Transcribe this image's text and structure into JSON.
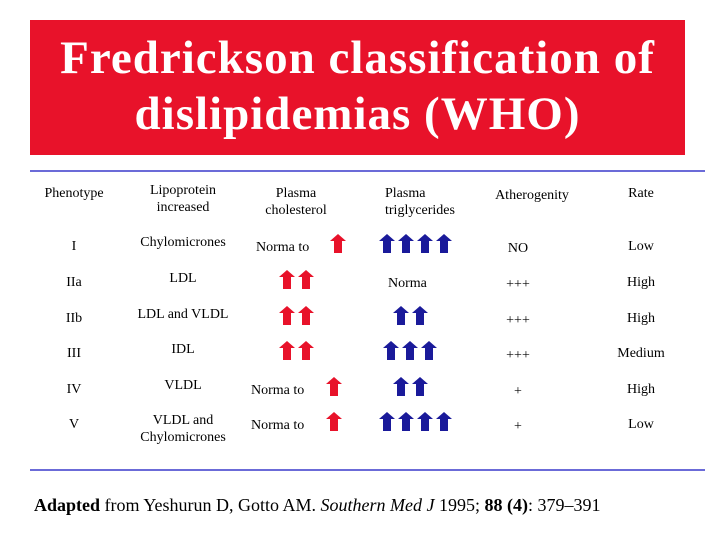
{
  "title": {
    "line1": "Fredrickson classification of",
    "line2": "dislipidemias (WHO)"
  },
  "headers": {
    "phenotype": "Phenotype",
    "lipoprotein_l1": "Lipoprotein",
    "lipoprotein_l2": "increased",
    "cholesterol_l1": "Plasma",
    "cholesterol_l2": "cholesterol",
    "triglycerides_l1": "Plasma",
    "triglycerides_l2": "triglycerides",
    "atherogenity": "Atherogenity",
    "rate": "Rate"
  },
  "rows": [
    {
      "phenotype": "I",
      "lipo": "Chylomicrones",
      "lipo2": "",
      "chol_text": "Norma to",
      "chol_arrows": 1,
      "trig_text": "",
      "trig_arrows": 4,
      "ath": "NO",
      "rate": "Low"
    },
    {
      "phenotype": "IIa",
      "lipo": "LDL",
      "lipo2": "",
      "chol_text": "",
      "chol_arrows": 2,
      "trig_text": "Norma",
      "trig_arrows": 0,
      "ath": "+++",
      "rate": "High"
    },
    {
      "phenotype": "IIb",
      "lipo": "LDL and VLDL",
      "lipo2": "",
      "chol_text": "",
      "chol_arrows": 2,
      "trig_text": "",
      "trig_arrows": 2,
      "ath": "+++",
      "rate": "High"
    },
    {
      "phenotype": "III",
      "lipo": "IDL",
      "lipo2": "",
      "chol_text": "",
      "chol_arrows": 2,
      "trig_text": "",
      "trig_arrows": 3,
      "ath": "+++",
      "rate": "Medium"
    },
    {
      "phenotype": "IV",
      "lipo": "VLDL",
      "lipo2": "",
      "chol_text": "Norma to",
      "chol_arrows": 1,
      "trig_text": "",
      "trig_arrows": 2,
      "ath": "+",
      "rate": "High"
    },
    {
      "phenotype": "V",
      "lipo": "VLDL and",
      "lipo2": "Chylomicrones",
      "chol_text": "Norma to",
      "chol_arrows": 1,
      "trig_text": "",
      "trig_arrows": 4,
      "ath": "+",
      "rate": "Low"
    }
  ],
  "colors": {
    "title_bg": "#e8122a",
    "cholesterol_arrow": "#e8122a",
    "triglycerides_arrow": "#1a1a9a",
    "divider": "#6b6bd8"
  },
  "icons": {
    "cholesterol": "red-up-arrow-icon",
    "triglycerides": "blue-up-arrow-icon"
  },
  "footer": {
    "adapted": "Adapted",
    "from": " from Yeshurun D, Gotto AM. ",
    "journal": "Southern Med J",
    "year": " 1995; ",
    "volume": "88 (4)",
    "pages": ": 379–391"
  }
}
